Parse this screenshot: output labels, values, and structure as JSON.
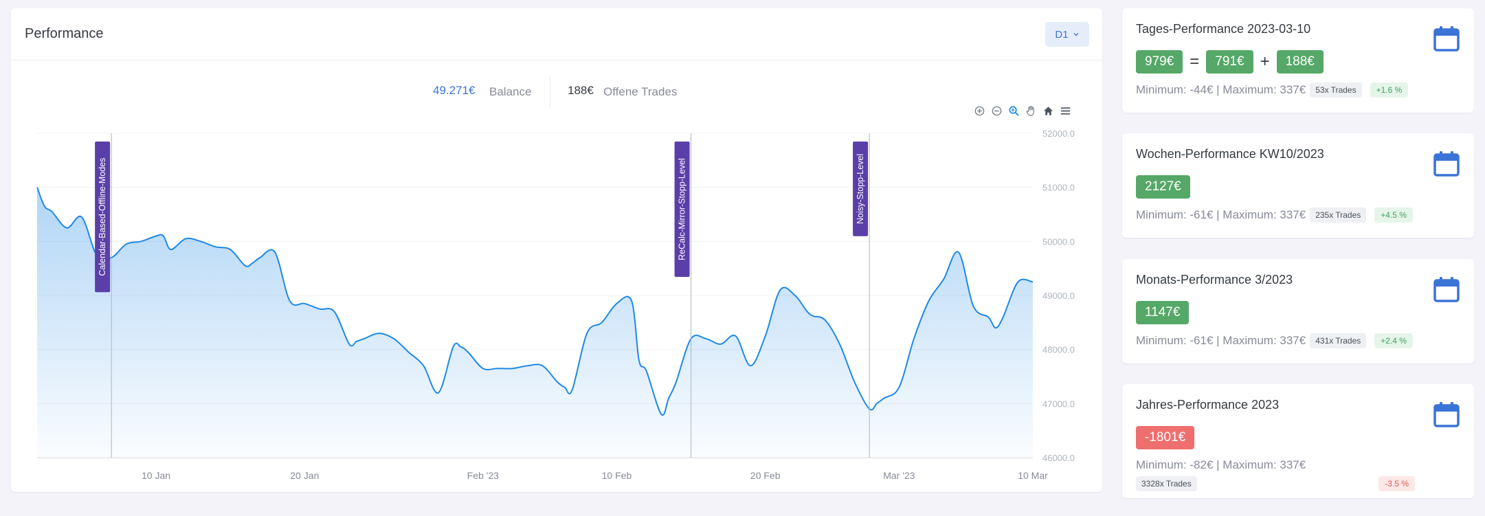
{
  "performance": {
    "title": "Performance",
    "timeframe": "D1",
    "balance_value": "49.271€",
    "balance_label": "Balance",
    "open_trades_value": "188€",
    "open_trades_label": "Offene Trades"
  },
  "toolbar": [
    "zoom-in-icon",
    "zoom-out-icon",
    "selection-zoom-icon",
    "pan-hand-icon",
    "reset-home-icon",
    "menu-icon"
  ],
  "chart_data": {
    "type": "area",
    "color": "#1e88e5",
    "y_tick_labels": [
      "52000.0",
      "51000.0",
      "50000.0",
      "49000.0",
      "48000.0",
      "47000.0",
      "46000.0"
    ],
    "ylim": [
      46000,
      52000
    ],
    "x_tick_labels": [
      "10 Jan",
      "20 Jan",
      "Feb '23",
      "10 Feb",
      "20 Feb",
      "Mar '23",
      "10 Mar"
    ],
    "x_tick_days": [
      9,
      19,
      31,
      40,
      50,
      59,
      68
    ],
    "xlim": [
      1,
      68
    ],
    "annotations": [
      {
        "label": "Calendar-Based-Offline-Modes",
        "day": 6
      },
      {
        "label": "ReCalc-Mirror-Stopp-Level",
        "day": 45
      },
      {
        "label": "Noisy-Stopp-Level",
        "day": 57
      }
    ],
    "x": [
      1,
      1.5,
      2,
      3,
      4,
      5,
      6,
      7,
      8,
      9,
      9.5,
      10,
      11,
      12,
      13,
      14,
      15,
      15.5,
      16,
      17,
      18,
      19,
      20,
      21,
      22,
      22.5,
      23,
      24,
      25,
      26,
      27,
      28,
      29,
      29.5,
      30,
      31,
      32,
      33,
      34,
      35,
      36,
      36.5,
      37,
      38,
      39,
      40,
      41,
      41.5,
      42,
      43,
      43.5,
      44,
      45,
      46,
      47,
      48,
      49,
      50,
      51,
      52,
      53,
      54,
      55,
      56,
      57,
      57.5,
      58,
      59,
      60,
      61,
      62,
      63,
      64,
      65,
      65.5,
      66,
      67,
      68
    ],
    "y": [
      51000,
      50650,
      50550,
      50250,
      50450,
      49750,
      49700,
      49950,
      50000,
      50100,
      50100,
      49850,
      50050,
      50000,
      49900,
      49850,
      49550,
      49600,
      49700,
      49800,
      48900,
      48850,
      48750,
      48700,
      48100,
      48150,
      48200,
      48300,
      48200,
      47950,
      47700,
      47200,
      48050,
      48050,
      47950,
      47650,
      47650,
      47650,
      47700,
      47700,
      47400,
      47300,
      47250,
      48300,
      48500,
      48850,
      48900,
      47800,
      47600,
      46800,
      47100,
      47400,
      48200,
      48200,
      48100,
      48250,
      47700,
      48250,
      49100,
      49000,
      48650,
      48550,
      48100,
      47400,
      46900,
      47000,
      47100,
      47300,
      48200,
      48900,
      49300,
      49800,
      48800,
      48600,
      48400,
      48600,
      49250,
      49250
    ]
  },
  "side_cards": [
    {
      "title": "Tages-Performance 2023-03-10",
      "total": "979€",
      "equals": "=",
      "closed": "791€",
      "plus": "+",
      "open": "188€",
      "min_max": "Minimum: -44€ | Maximum: 337€",
      "trades": "53x Trades",
      "pct": "+1.6 %"
    },
    {
      "title": "Wochen-Performance KW10/2023",
      "total": "2127€",
      "min_max": "Minimum: -61€ | Maximum: 337€",
      "trades": "235x Trades",
      "pct": "+4.5 %"
    },
    {
      "title": "Monats-Performance 3/2023",
      "total": "1147€",
      "min_max": "Minimum: -61€ | Maximum: 337€",
      "trades": "431x Trades",
      "pct": "+2.4 %"
    },
    {
      "title": "Jahres-Performance 2023",
      "total": "-1801€",
      "min_max": "Minimum: -82€ | Maximum: 337€",
      "trades": "3328x Trades",
      "pct": "-3.5 %"
    }
  ],
  "colors": {
    "accent": "#3b73d6",
    "positive": "#55a867",
    "negative": "#ef6e6e",
    "annotation": "#5b3fa8"
  }
}
